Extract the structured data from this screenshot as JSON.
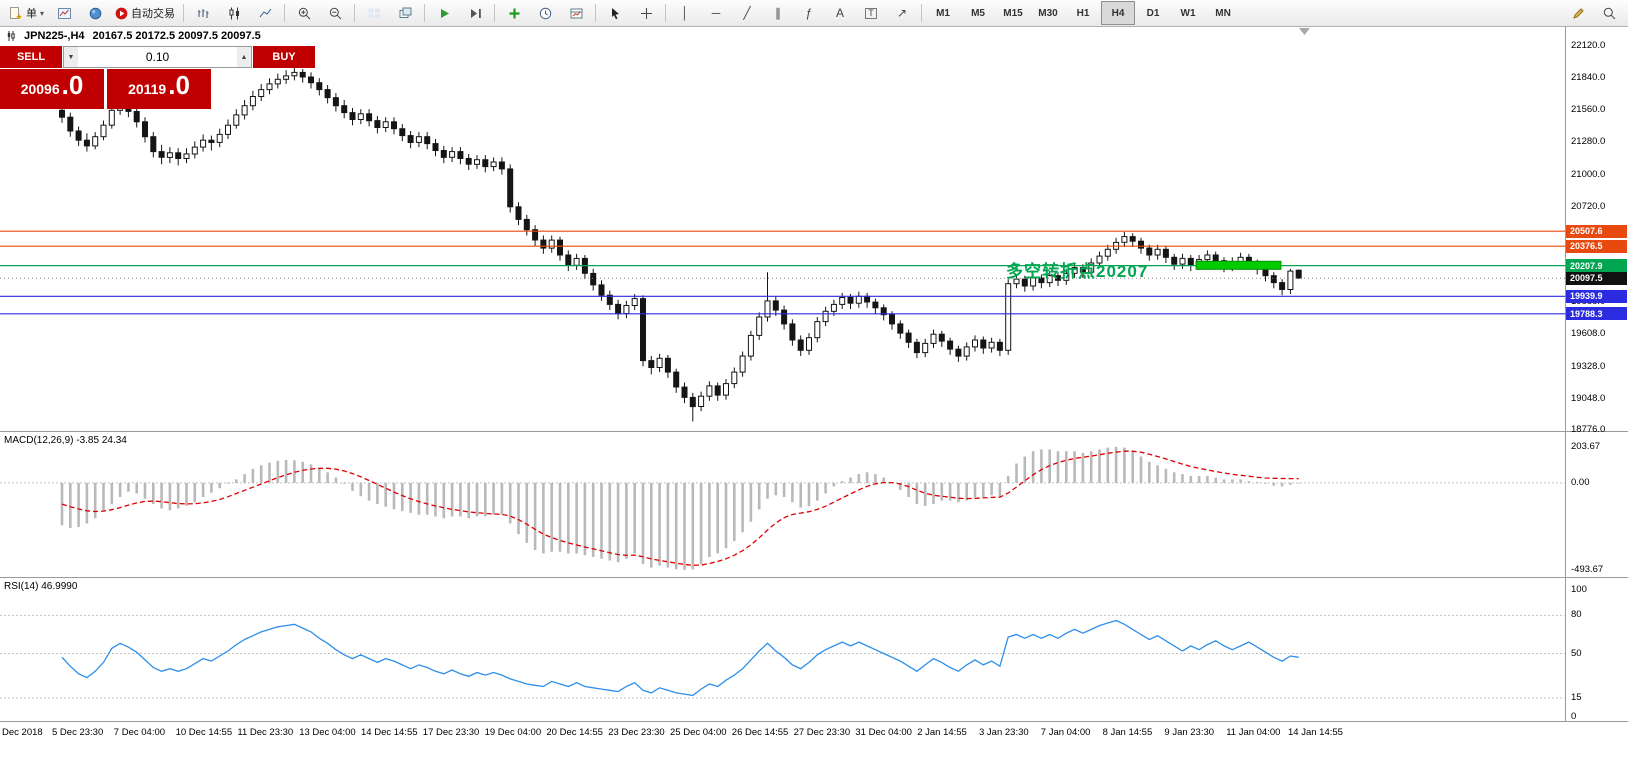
{
  "toolbar": {
    "new_order_label": "单",
    "autotrading_label": "自动交易",
    "timeframes": [
      "M1",
      "M5",
      "M15",
      "M30",
      "H1",
      "H4",
      "D1",
      "W1",
      "MN"
    ],
    "active_timeframe": "H4"
  },
  "trade_panel": {
    "sell_label": "SELL",
    "buy_label": "BUY",
    "volume": "0.10",
    "sell_price": "20096",
    "sell_price_frac": ".0",
    "buy_price": "20119",
    "buy_price_frac": ".0"
  },
  "chart": {
    "title_symbol": "JPN225-,H4",
    "title_ohlc": "20167.5 20172.5 20097.5 20097.5",
    "annotation": {
      "text": "多空转折点20207",
      "color": "#00A651"
    },
    "levels": [
      {
        "price": 20507.6,
        "label": "20507.6",
        "color": "#E8490F"
      },
      {
        "price": 20376.5,
        "label": "20376.5",
        "color": "#E8490F"
      },
      {
        "price": 20207.9,
        "label": "20207.9",
        "color": "#00A651"
      },
      {
        "price": 19939.9,
        "label": "19939.9",
        "color": "#2B2BE0"
      },
      {
        "price": 19788.3,
        "label": "19788.3",
        "color": "#2B2BE0"
      }
    ],
    "current_price": {
      "price": 20097.5,
      "label": "20097.5",
      "color": "#111111"
    },
    "y_axis_ticks": [
      {
        "v": 22120,
        "label": "22120.0"
      },
      {
        "v": 21840,
        "label": "21840.0"
      },
      {
        "v": 21560,
        "label": "21560.0"
      },
      {
        "v": 21280,
        "label": "21280.0"
      },
      {
        "v": 21000,
        "label": "21000.0"
      },
      {
        "v": 20720,
        "label": "20720.0"
      },
      {
        "v": 19888,
        "label": "19888.0"
      },
      {
        "v": 19608,
        "label": "19608.0"
      },
      {
        "v": 19328,
        "label": "19328.0"
      },
      {
        "v": 19048,
        "label": "19048.0"
      },
      {
        "v": 18776,
        "label": "18776.0"
      }
    ],
    "highlight_rect": {
      "from_index": 137,
      "to_index": 146.5,
      "price_top": 20245,
      "price_bottom": 20175,
      "color": "#00CC00"
    }
  },
  "indicators": {
    "macd": {
      "label": "MACD(12,26,9) -3.85 24.34",
      "axis": [
        {
          "v": 203.67,
          "label": "203.67"
        },
        {
          "v": 0,
          "label": "0.00"
        },
        {
          "v": -493.67,
          "label": "-493.67"
        }
      ]
    },
    "rsi": {
      "label": "RSI(14) 46.9990",
      "axis": [
        {
          "v": 100,
          "label": "100"
        },
        {
          "v": 80,
          "label": "80"
        },
        {
          "v": 50,
          "label": "50"
        },
        {
          "v": 15,
          "label": "15"
        },
        {
          "v": 0,
          "label": "0"
        }
      ],
      "levels": [
        80,
        50,
        15
      ]
    }
  },
  "time_axis": {
    "labels": [
      "Dec 2018",
      "5 Dec 23:30",
      "7 Dec 04:00",
      "10 Dec 14:55",
      "11 Dec 23:30",
      "13 Dec 04:00",
      "14 Dec 14:55",
      "17 Dec 23:30",
      "19 Dec 04:00",
      "20 Dec 14:55",
      "23 Dec 23:30",
      "25 Dec 04:00",
      "26 Dec 14:55",
      "27 Dec 23:30",
      "31 Dec 04:00",
      "2 Jan 14:55",
      "3 Jan 23:30",
      "7 Jan 04:00",
      "8 Jan 14:55",
      "9 Jan 23:30",
      "11 Jan 04:00",
      "14 Jan 14:55"
    ]
  },
  "chart_data": {
    "type": "candlestick",
    "symbol": "JPN225-",
    "timeframe": "H4",
    "price_axis_range": [
      18776,
      22120
    ],
    "candles": [
      [
        21560,
        21600,
        21450,
        21500
      ],
      [
        21500,
        21540,
        21330,
        21380
      ],
      [
        21380,
        21420,
        21250,
        21300
      ],
      [
        21300,
        21360,
        21200,
        21250
      ],
      [
        21250,
        21370,
        21220,
        21330
      ],
      [
        21330,
        21470,
        21300,
        21430
      ],
      [
        21430,
        21600,
        21400,
        21560
      ],
      [
        21560,
        21700,
        21520,
        21620
      ],
      [
        21620,
        21700,
        21500,
        21550
      ],
      [
        21550,
        21590,
        21410,
        21460
      ],
      [
        21460,
        21500,
        21280,
        21330
      ],
      [
        21330,
        21370,
        21150,
        21200
      ],
      [
        21200,
        21260,
        21090,
        21150
      ],
      [
        21150,
        21240,
        21100,
        21190
      ],
      [
        21190,
        21230,
        21080,
        21140
      ],
      [
        21140,
        21230,
        21100,
        21180
      ],
      [
        21180,
        21290,
        21140,
        21240
      ],
      [
        21240,
        21350,
        21200,
        21300
      ],
      [
        21300,
        21340,
        21210,
        21280
      ],
      [
        21280,
        21400,
        21240,
        21350
      ],
      [
        21350,
        21480,
        21310,
        21430
      ],
      [
        21430,
        21570,
        21400,
        21520
      ],
      [
        21520,
        21650,
        21480,
        21600
      ],
      [
        21600,
        21730,
        21560,
        21680
      ],
      [
        21680,
        21790,
        21640,
        21740
      ],
      [
        21740,
        21840,
        21700,
        21790
      ],
      [
        21790,
        21880,
        21750,
        21830
      ],
      [
        21830,
        21910,
        21790,
        21860
      ],
      [
        21860,
        21940,
        21820,
        21890
      ],
      [
        21890,
        21920,
        21800,
        21850
      ],
      [
        21850,
        21890,
        21750,
        21800
      ],
      [
        21800,
        21840,
        21690,
        21740
      ],
      [
        21740,
        21780,
        21620,
        21670
      ],
      [
        21670,
        21710,
        21550,
        21600
      ],
      [
        21600,
        21650,
        21490,
        21540
      ],
      [
        21540,
        21580,
        21430,
        21480
      ],
      [
        21480,
        21570,
        21440,
        21530
      ],
      [
        21530,
        21570,
        21420,
        21470
      ],
      [
        21470,
        21510,
        21360,
        21410
      ],
      [
        21410,
        21500,
        21370,
        21460
      ],
      [
        21460,
        21500,
        21350,
        21400
      ],
      [
        21400,
        21440,
        21290,
        21340
      ],
      [
        21340,
        21380,
        21230,
        21280
      ],
      [
        21280,
        21370,
        21240,
        21330
      ],
      [
        21330,
        21370,
        21220,
        21270
      ],
      [
        21270,
        21310,
        21160,
        21210
      ],
      [
        21210,
        21250,
        21100,
        21150
      ],
      [
        21150,
        21240,
        21110,
        21200
      ],
      [
        21200,
        21240,
        21090,
        21140
      ],
      [
        21140,
        21180,
        21040,
        21090
      ],
      [
        21090,
        21170,
        21050,
        21130
      ],
      [
        21130,
        21170,
        21020,
        21070
      ],
      [
        21070,
        21150,
        21030,
        21110
      ],
      [
        21110,
        21150,
        21000,
        21050
      ],
      [
        21050,
        21090,
        20670,
        20720
      ],
      [
        20720,
        20760,
        20560,
        20610
      ],
      [
        20610,
        20650,
        20470,
        20520
      ],
      [
        20520,
        20560,
        20380,
        20430
      ],
      [
        20430,
        20470,
        20310,
        20360
      ],
      [
        20360,
        20470,
        20320,
        20430
      ],
      [
        20430,
        20460,
        20250,
        20300
      ],
      [
        20300,
        20340,
        20160,
        20210
      ],
      [
        20210,
        20310,
        20170,
        20270
      ],
      [
        20270,
        20300,
        20090,
        20140
      ],
      [
        20140,
        20180,
        19990,
        20040
      ],
      [
        20040,
        20080,
        19900,
        19950
      ],
      [
        19950,
        19990,
        19820,
        19870
      ],
      [
        19870,
        19910,
        19740,
        19790
      ],
      [
        19790,
        19900,
        19750,
        19860
      ],
      [
        19860,
        19960,
        19820,
        19920
      ],
      [
        19920,
        19950,
        19330,
        19380
      ],
      [
        19380,
        19420,
        19260,
        19320
      ],
      [
        19320,
        19440,
        19280,
        19400
      ],
      [
        19400,
        19430,
        19230,
        19280
      ],
      [
        19280,
        19310,
        19100,
        19150
      ],
      [
        19150,
        19190,
        19010,
        19060
      ],
      [
        19060,
        19100,
        18850,
        18980
      ],
      [
        18980,
        19110,
        18940,
        19070
      ],
      [
        19070,
        19200,
        19030,
        19160
      ],
      [
        19160,
        19190,
        19030,
        19080
      ],
      [
        19080,
        19220,
        19040,
        19180
      ],
      [
        19180,
        19320,
        19140,
        19280
      ],
      [
        19280,
        19460,
        19240,
        19420
      ],
      [
        19420,
        19640,
        19380,
        19600
      ],
      [
        19600,
        19800,
        19560,
        19760
      ],
      [
        19760,
        20150,
        19720,
        19900
      ],
      [
        19900,
        19940,
        19770,
        19820
      ],
      [
        19820,
        19860,
        19650,
        19700
      ],
      [
        19700,
        19740,
        19510,
        19560
      ],
      [
        19560,
        19600,
        19420,
        19470
      ],
      [
        19470,
        19620,
        19430,
        19580
      ],
      [
        19580,
        19760,
        19540,
        19720
      ],
      [
        19720,
        19850,
        19680,
        19810
      ],
      [
        19810,
        19910,
        19770,
        19870
      ],
      [
        19870,
        19970,
        19830,
        19930
      ],
      [
        19930,
        19960,
        19830,
        19880
      ],
      [
        19880,
        19980,
        19840,
        19940
      ],
      [
        19940,
        19970,
        19840,
        19890
      ],
      [
        19890,
        19920,
        19790,
        19840
      ],
      [
        19840,
        19870,
        19730,
        19780
      ],
      [
        19780,
        19810,
        19650,
        19700
      ],
      [
        19700,
        19730,
        19570,
        19620
      ],
      [
        19620,
        19650,
        19490,
        19540
      ],
      [
        19540,
        19570,
        19400,
        19450
      ],
      [
        19450,
        19570,
        19410,
        19530
      ],
      [
        19530,
        19650,
        19490,
        19610
      ],
      [
        19610,
        19640,
        19500,
        19550
      ],
      [
        19550,
        19580,
        19430,
        19480
      ],
      [
        19480,
        19510,
        19370,
        19420
      ],
      [
        19420,
        19540,
        19380,
        19500
      ],
      [
        19500,
        19600,
        19460,
        19560
      ],
      [
        19560,
        19590,
        19440,
        19490
      ],
      [
        19490,
        19580,
        19450,
        19540
      ],
      [
        19540,
        19570,
        19420,
        19470
      ],
      [
        19470,
        20090,
        19430,
        20050
      ],
      [
        20050,
        20130,
        20010,
        20090
      ],
      [
        20090,
        20120,
        19980,
        20030
      ],
      [
        20030,
        20140,
        19990,
        20100
      ],
      [
        20100,
        20130,
        20010,
        20060
      ],
      [
        20060,
        20160,
        20020,
        20120
      ],
      [
        20120,
        20150,
        20030,
        20080
      ],
      [
        20080,
        20180,
        20040,
        20140
      ],
      [
        20140,
        20230,
        20100,
        20190
      ],
      [
        20190,
        20220,
        20100,
        20150
      ],
      [
        20150,
        20270,
        20110,
        20230
      ],
      [
        20230,
        20330,
        20190,
        20290
      ],
      [
        20290,
        20390,
        20250,
        20350
      ],
      [
        20350,
        20450,
        20310,
        20410
      ],
      [
        20410,
        20500,
        20370,
        20460
      ],
      [
        20460,
        20490,
        20370,
        20420
      ],
      [
        20420,
        20450,
        20310,
        20360
      ],
      [
        20360,
        20390,
        20250,
        20300
      ],
      [
        20300,
        20390,
        20260,
        20350
      ],
      [
        20350,
        20380,
        20230,
        20280
      ],
      [
        20280,
        20310,
        20170,
        20220
      ],
      [
        20220,
        20310,
        20180,
        20270
      ],
      [
        20270,
        20300,
        20160,
        20210
      ],
      [
        20210,
        20300,
        20170,
        20260
      ],
      [
        20260,
        20340,
        20220,
        20300
      ],
      [
        20300,
        20330,
        20200,
        20250
      ],
      [
        20250,
        20280,
        20150,
        20200
      ],
      [
        20200,
        20280,
        20160,
        20240
      ],
      [
        20240,
        20320,
        20200,
        20280
      ],
      [
        20280,
        20310,
        20180,
        20230
      ],
      [
        20230,
        20260,
        20130,
        20180
      ],
      [
        20180,
        20210,
        20070,
        20120
      ],
      [
        20120,
        20150,
        20010,
        20060
      ],
      [
        20060,
        20090,
        19950,
        20000
      ],
      [
        20000,
        20180,
        19960,
        20160
      ],
      [
        20167.5,
        20172.5,
        20097.5,
        20097.5
      ]
    ],
    "macd_histogram": [
      -240,
      -255,
      -250,
      -230,
      -200,
      -160,
      -120,
      -80,
      -50,
      -60,
      -90,
      -120,
      -145,
      -155,
      -145,
      -130,
      -110,
      -80,
      -55,
      -30,
      -5,
      20,
      50,
      80,
      100,
      115,
      125,
      130,
      128,
      120,
      105,
      85,
      60,
      30,
      -5,
      -45,
      -75,
      -100,
      -120,
      -135,
      -150,
      -160,
      -170,
      -180,
      -180,
      -190,
      -200,
      -190,
      -190,
      -200,
      -190,
      -190,
      -180,
      -180,
      -230,
      -290,
      -340,
      -380,
      -400,
      -390,
      -390,
      -400,
      -400,
      -410,
      -420,
      -430,
      -440,
      -450,
      -430,
      -400,
      -460,
      -480,
      -470,
      -480,
      -490,
      -493,
      -490,
      -460,
      -420,
      -400,
      -370,
      -330,
      -280,
      -220,
      -150,
      -90,
      -70,
      -80,
      -110,
      -140,
      -130,
      -100,
      -60,
      -20,
      10,
      30,
      50,
      60,
      50,
      30,
      0,
      -40,
      -80,
      -120,
      -130,
      -120,
      -100,
      -100,
      -110,
      -100,
      -80,
      -80,
      -70,
      -80,
      40,
      110,
      150,
      180,
      190,
      190,
      180,
      180,
      180,
      170,
      180,
      190,
      200,
      204,
      200,
      180,
      150,
      120,
      100,
      80,
      60,
      50,
      40,
      40,
      40,
      30,
      20,
      20,
      20,
      10,
      5,
      -5,
      -15,
      -20,
      -10,
      -3.85
    ],
    "macd_signal": [
      -120,
      -135,
      -148,
      -158,
      -162,
      -160,
      -152,
      -140,
      -126,
      -113,
      -105,
      -103,
      -106,
      -112,
      -117,
      -119,
      -118,
      -113,
      -105,
      -94,
      -78,
      -60,
      -42,
      -24,
      -6,
      12,
      30,
      46,
      60,
      71,
      79,
      83,
      83,
      78,
      68,
      53,
      35,
      14,
      -8,
      -30,
      -52,
      -72,
      -90,
      -106,
      -119,
      -131,
      -141,
      -150,
      -157,
      -164,
      -169,
      -173,
      -176,
      -178,
      -188,
      -208,
      -234,
      -263,
      -290,
      -310,
      -326,
      -340,
      -352,
      -363,
      -374,
      -385,
      -396,
      -406,
      -411,
      -409,
      -419,
      -431,
      -439,
      -447,
      -455,
      -462,
      -467,
      -466,
      -457,
      -445,
      -430,
      -410,
      -384,
      -351,
      -311,
      -267,
      -227,
      -197,
      -179,
      -171,
      -163,
      -150,
      -132,
      -109,
      -85,
      -62,
      -39,
      -19,
      -5,
      2,
      2,
      -6,
      -21,
      -41,
      -58,
      -70,
      -76,
      -81,
      -87,
      -89,
      -87,
      -85,
      -82,
      -81,
      -57,
      -23,
      12,
      46,
      75,
      98,
      115,
      128,
      139,
      145,
      152,
      160,
      168,
      175,
      180,
      180,
      174,
      163,
      150,
      136,
      121,
      107,
      93,
      83,
      74,
      65,
      56,
      49,
      43,
      38,
      32,
      28,
      26,
      25,
      24.5,
      24.34
    ],
    "rsi_values": [
      47,
      40,
      34,
      31,
      36,
      43,
      54,
      58,
      55,
      51,
      45,
      39,
      36,
      38,
      36,
      38,
      42,
      46,
      44,
      48,
      52,
      57,
      61,
      64,
      67,
      69,
      71,
      72,
      73,
      70,
      67,
      62,
      58,
      53,
      49,
      46,
      49,
      46,
      43,
      46,
      44,
      41,
      38,
      41,
      39,
      36,
      34,
      37,
      34,
      32,
      35,
      33,
      35,
      33,
      30,
      28,
      26,
      25,
      24,
      28,
      26,
      24,
      27,
      24,
      23,
      22,
      21,
      20,
      24,
      27,
      21,
      19,
      23,
      21,
      19,
      18,
      17,
      22,
      26,
      24,
      29,
      33,
      38,
      45,
      52,
      58,
      52,
      47,
      41,
      38,
      43,
      49,
      53,
      56,
      59,
      56,
      59,
      56,
      53,
      50,
      47,
      44,
      40,
      36,
      41,
      46,
      43,
      39,
      36,
      41,
      45,
      41,
      44,
      40,
      63,
      65,
      62,
      65,
      62,
      65,
      62,
      66,
      69,
      66,
      69,
      72,
      74,
      76,
      73,
      69,
      65,
      61,
      64,
      60,
      56,
      52,
      56,
      53,
      57,
      60,
      56,
      53,
      56,
      59,
      55,
      51,
      47,
      44,
      48,
      47
    ]
  }
}
